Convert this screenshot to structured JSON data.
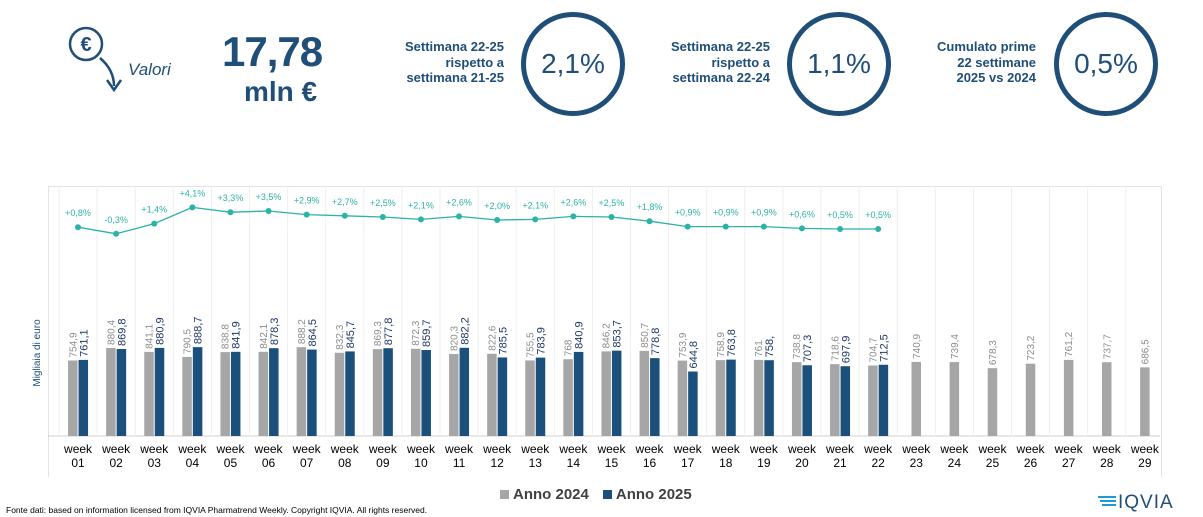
{
  "header": {
    "icon": "euro-down-arrow-icon",
    "label": "Valori",
    "value": "17,78",
    "unit": "mln €"
  },
  "kpis": [
    {
      "text_lines": [
        "Settimana 22-25",
        "rispetto a",
        "settimana 21-25"
      ],
      "value": "2,1%"
    },
    {
      "text_lines": [
        "Settimana 22-25",
        "rispetto a",
        "settimana 22-24"
      ],
      "value": "1,1%"
    },
    {
      "text_lines": [
        "Cumulato prime",
        "22 settimane",
        "2025 vs 2024"
      ],
      "value": "0,5%"
    }
  ],
  "colors": {
    "primary": "#1f4e79",
    "bar_2024": "#a6a6a6",
    "bar_2025": "#1b4f7c",
    "growth_line": "#2ab3a6"
  },
  "chart_data": {
    "type": "bar",
    "ylabel": "Migliaia di euro",
    "categories": [
      "week 01",
      "week 02",
      "week 03",
      "week 04",
      "week 05",
      "week 06",
      "week 07",
      "week 08",
      "week 09",
      "week 10",
      "week 11",
      "week 12",
      "week 13",
      "week 14",
      "week 15",
      "week 16",
      "week 17",
      "week 18",
      "week 19",
      "week 20",
      "week 21",
      "week 22",
      "week 23",
      "week 24",
      "week 25",
      "week 26",
      "week 27",
      "week 28",
      "week 29"
    ],
    "series": [
      {
        "name": "Anno 2024",
        "values": [
          754.9,
          880.4,
          841.1,
          790.5,
          838.8,
          842.1,
          888.2,
          832.3,
          869.3,
          872.3,
          820.3,
          822.6,
          755.5,
          768,
          846.2,
          850.7,
          753.9,
          758.9,
          761,
          738.8,
          718.6,
          704.7,
          740.9,
          739.4,
          678.3,
          723.2,
          761.2,
          737.7,
          686.5
        ],
        "labels": [
          "754,9",
          "880,4",
          "841,1",
          "790,5",
          "838,8",
          "842,1",
          "888,2",
          "832,3",
          "869,3",
          "872,3",
          "820,3",
          "822,6",
          "755,5",
          "768",
          "846,2",
          "850,7",
          "753,9",
          "758,9",
          "761",
          "738,8",
          "718,6",
          "704,7",
          "740,9",
          "739,4",
          "678,3",
          "723,2",
          "761,2",
          "737,7",
          "686,5"
        ]
      },
      {
        "name": "Anno 2025",
        "values": [
          761.1,
          869.8,
          880.9,
          888.7,
          841.9,
          878.3,
          864.5,
          845.7,
          877.8,
          859.7,
          882.2,
          785.5,
          783.9,
          840.9,
          853.7,
          778.8,
          644.8,
          763.8,
          758.0,
          707.3,
          697.9,
          712.5,
          null,
          null,
          null,
          null,
          null,
          null,
          null
        ],
        "labels": [
          "761,1",
          "869,8",
          "880,9",
          "888,7",
          "841,9",
          "878,3",
          "864,5",
          "845,7",
          "877,8",
          "859,7",
          "882,2",
          "785,5",
          "783,9",
          "840,9",
          "853,7",
          "778,8",
          "644,8",
          "763,8",
          "758,",
          "707,3",
          "697,9",
          "712,5",
          "",
          "",
          "",
          "",
          "",
          "",
          ""
        ]
      }
    ],
    "growth": {
      "values": [
        0.8,
        -0.3,
        1.4,
        4.1,
        3.3,
        3.5,
        2.9,
        2.7,
        2.5,
        2.1,
        2.6,
        2.0,
        2.1,
        2.6,
        2.5,
        1.8,
        0.9,
        0.9,
        0.9,
        0.6,
        0.5,
        0.5
      ],
      "labels": [
        "+0,8%",
        "-0,3%",
        "+1,4%",
        "+4,1%",
        "+3,3%",
        "+3,5%",
        "+2,9%",
        "+2,7%",
        "+2,5%",
        "+2,1%",
        "+2,6%",
        "+2,0%",
        "+2,1%",
        "+2,6%",
        "+2,5%",
        "+1,8%",
        "+0,9%",
        "+0,9%",
        "+0,9%",
        "+0,6%",
        "+0,5%",
        "+0,5%"
      ]
    },
    "ylim": [
      0,
      1400
    ],
    "legend_position": "bottom-center"
  },
  "legend": [
    "Anno 2024",
    "Anno 2025"
  ],
  "footer": "Fonte dati: based on information licensed from IQVIA Pharmatrend Weekly. Copyright IQVIA. All rights reserved.",
  "logo_text": "IQVIA"
}
